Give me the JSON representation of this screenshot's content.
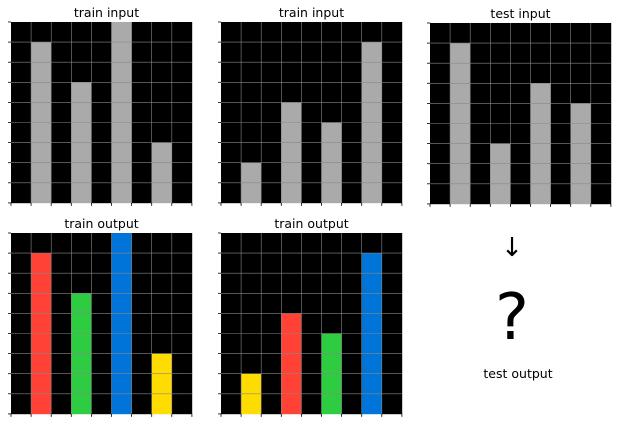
{
  "palette": {
    "0": "#000000",
    "1": "#ff4136",
    "2": "#2ecc40",
    "3": "#0074d9",
    "4": "#ffdc00",
    "5": "#aaaaaa",
    "grid_line": "#888888"
  },
  "panels": [
    {
      "title": "train input",
      "grid": [
        [
          0,
          0,
          0,
          0,
          0,
          5,
          0,
          0,
          0
        ],
        [
          0,
          5,
          0,
          0,
          0,
          5,
          0,
          0,
          0
        ],
        [
          0,
          5,
          0,
          0,
          0,
          5,
          0,
          0,
          0
        ],
        [
          0,
          5,
          0,
          5,
          0,
          5,
          0,
          0,
          0
        ],
        [
          0,
          5,
          0,
          5,
          0,
          5,
          0,
          0,
          0
        ],
        [
          0,
          5,
          0,
          5,
          0,
          5,
          0,
          0,
          0
        ],
        [
          0,
          5,
          0,
          5,
          0,
          5,
          0,
          5,
          0
        ],
        [
          0,
          5,
          0,
          5,
          0,
          5,
          0,
          5,
          0
        ],
        [
          0,
          5,
          0,
          5,
          0,
          5,
          0,
          5,
          0
        ]
      ]
    },
    {
      "title": "train input",
      "grid": [
        [
          0,
          0,
          0,
          0,
          0,
          0,
          0,
          0,
          0
        ],
        [
          0,
          0,
          0,
          0,
          0,
          0,
          0,
          5,
          0
        ],
        [
          0,
          0,
          0,
          0,
          0,
          0,
          0,
          5,
          0
        ],
        [
          0,
          0,
          0,
          0,
          0,
          0,
          0,
          5,
          0
        ],
        [
          0,
          0,
          0,
          5,
          0,
          0,
          0,
          5,
          0
        ],
        [
          0,
          0,
          0,
          5,
          0,
          5,
          0,
          5,
          0
        ],
        [
          0,
          0,
          0,
          5,
          0,
          5,
          0,
          5,
          0
        ],
        [
          0,
          5,
          0,
          5,
          0,
          5,
          0,
          5,
          0
        ],
        [
          0,
          5,
          0,
          5,
          0,
          5,
          0,
          5,
          0
        ]
      ]
    },
    {
      "title": "test input",
      "grid": [
        [
          0,
          0,
          0,
          0,
          0,
          0,
          0,
          0,
          0
        ],
        [
          0,
          5,
          0,
          0,
          0,
          0,
          0,
          0,
          0
        ],
        [
          0,
          5,
          0,
          0,
          0,
          0,
          0,
          0,
          0
        ],
        [
          0,
          5,
          0,
          0,
          0,
          5,
          0,
          0,
          0
        ],
        [
          0,
          5,
          0,
          0,
          0,
          5,
          0,
          5,
          0
        ],
        [
          0,
          5,
          0,
          0,
          0,
          5,
          0,
          5,
          0
        ],
        [
          0,
          5,
          0,
          5,
          0,
          5,
          0,
          5,
          0
        ],
        [
          0,
          5,
          0,
          5,
          0,
          5,
          0,
          5,
          0
        ],
        [
          0,
          5,
          0,
          5,
          0,
          5,
          0,
          5,
          0
        ]
      ]
    },
    {
      "title": "train output",
      "grid": [
        [
          0,
          0,
          0,
          0,
          0,
          3,
          0,
          0,
          0
        ],
        [
          0,
          1,
          0,
          0,
          0,
          3,
          0,
          0,
          0
        ],
        [
          0,
          1,
          0,
          0,
          0,
          3,
          0,
          0,
          0
        ],
        [
          0,
          1,
          0,
          2,
          0,
          3,
          0,
          0,
          0
        ],
        [
          0,
          1,
          0,
          2,
          0,
          3,
          0,
          0,
          0
        ],
        [
          0,
          1,
          0,
          2,
          0,
          3,
          0,
          0,
          0
        ],
        [
          0,
          1,
          0,
          2,
          0,
          3,
          0,
          4,
          0
        ],
        [
          0,
          1,
          0,
          2,
          0,
          3,
          0,
          4,
          0
        ],
        [
          0,
          1,
          0,
          2,
          0,
          3,
          0,
          4,
          0
        ]
      ]
    },
    {
      "title": "train output",
      "grid": [
        [
          0,
          0,
          0,
          0,
          0,
          0,
          0,
          0,
          0
        ],
        [
          0,
          0,
          0,
          0,
          0,
          0,
          0,
          3,
          0
        ],
        [
          0,
          0,
          0,
          0,
          0,
          0,
          0,
          3,
          0
        ],
        [
          0,
          0,
          0,
          0,
          0,
          0,
          0,
          3,
          0
        ],
        [
          0,
          0,
          0,
          1,
          0,
          0,
          0,
          3,
          0
        ],
        [
          0,
          0,
          0,
          1,
          0,
          2,
          0,
          3,
          0
        ],
        [
          0,
          0,
          0,
          1,
          0,
          2,
          0,
          3,
          0
        ],
        [
          0,
          4,
          0,
          1,
          0,
          2,
          0,
          3,
          0
        ],
        [
          0,
          4,
          0,
          1,
          0,
          2,
          0,
          3,
          0
        ]
      ]
    }
  ],
  "arrow": "↓",
  "question_mark": "?",
  "test_output_title": "test output"
}
